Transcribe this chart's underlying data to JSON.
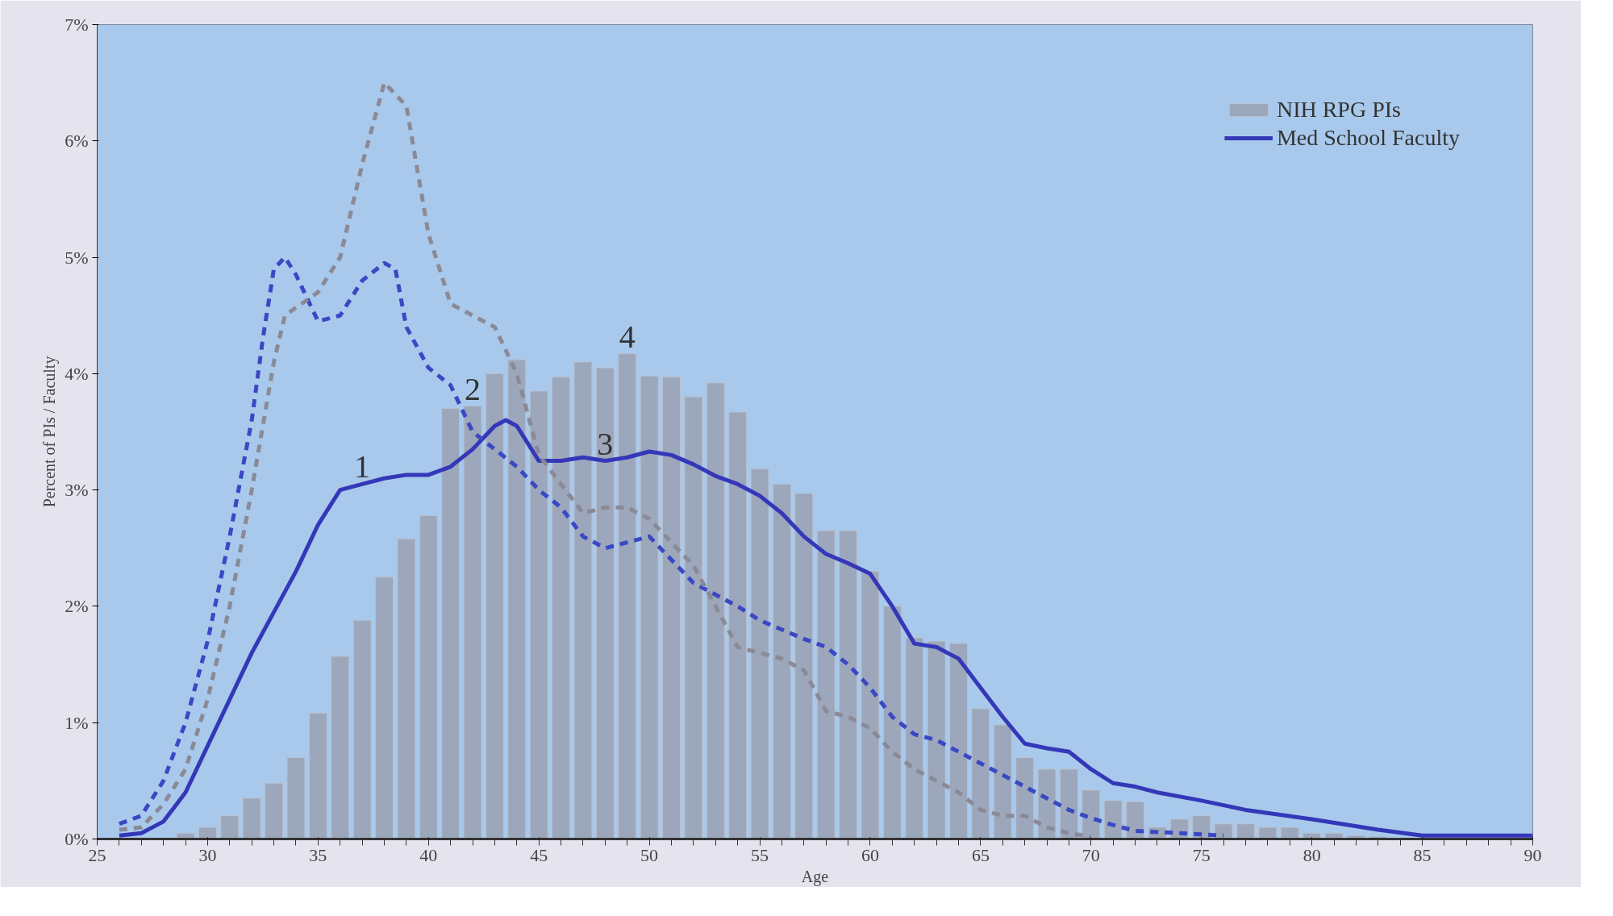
{
  "chart_data": {
    "type": "bar",
    "xlabel": "Age",
    "ylabel": "Percent of PIs / Faculty",
    "xlim": [
      25,
      90
    ],
    "ylim": [
      0,
      7
    ],
    "xticks": [
      25,
      30,
      35,
      40,
      45,
      50,
      55,
      60,
      65,
      70,
      75,
      80,
      85,
      90
    ],
    "yticks": [
      {
        "value": 0,
        "label": "0%"
      },
      {
        "value": 1,
        "label": "1%"
      },
      {
        "value": 2,
        "label": "2%"
      },
      {
        "value": 3,
        "label": "3%"
      },
      {
        "value": 4,
        "label": "4%"
      },
      {
        "value": 5,
        "label": "5%"
      },
      {
        "value": 6,
        "label": "6%"
      },
      {
        "value": 7,
        "label": "7%"
      }
    ],
    "grid": false,
    "legend": "top right",
    "series": [
      {
        "name": "NIH RPG PIs",
        "color": "#9ba3b6",
        "x": [
          29,
          30,
          31,
          32,
          33,
          34,
          35,
          36,
          37,
          38,
          39,
          40,
          41,
          42,
          43,
          44,
          45,
          46,
          47,
          48,
          49,
          50,
          51,
          52,
          53,
          54,
          55,
          56,
          57,
          58,
          59,
          60,
          61,
          62,
          63,
          64,
          65,
          66,
          67,
          68,
          69,
          70,
          71,
          72,
          73,
          74,
          75,
          76,
          77,
          78,
          79,
          80,
          81,
          82,
          83
        ],
        "values": [
          0.05,
          0.1,
          0.2,
          0.35,
          0.48,
          0.7,
          1.08,
          1.57,
          1.88,
          2.25,
          2.58,
          2.78,
          3.7,
          3.72,
          4.0,
          4.12,
          3.85,
          3.97,
          4.1,
          4.05,
          4.17,
          3.98,
          3.97,
          3.8,
          3.92,
          3.67,
          3.18,
          3.05,
          2.97,
          2.65,
          2.65,
          2.3,
          2.0,
          1.73,
          1.7,
          1.68,
          1.12,
          0.98,
          0.7,
          0.6,
          0.6,
          0.42,
          0.33,
          0.32,
          0.1,
          0.17,
          0.2,
          0.13,
          0.13,
          0.1,
          0.1,
          0.05,
          0.05,
          0.03,
          0.02
        ]
      },
      {
        "name": "Med School Faculty",
        "type": "line",
        "line_style": "solid",
        "color": "#3438b8",
        "x": [
          26,
          27,
          28,
          29,
          30,
          31,
          32,
          33,
          34,
          35,
          36,
          37,
          38,
          39,
          40,
          41,
          42,
          43,
          43.5,
          44,
          45,
          46,
          47,
          48,
          49,
          50,
          51,
          52,
          53,
          54,
          55,
          56,
          57,
          58,
          59,
          60,
          61,
          62,
          63,
          64,
          65,
          66,
          67,
          68,
          69,
          70,
          71,
          72,
          73,
          75,
          77,
          80,
          83,
          85,
          87,
          90
        ],
        "values": [
          0.03,
          0.05,
          0.15,
          0.4,
          0.8,
          1.2,
          1.6,
          1.95,
          2.3,
          2.7,
          3.0,
          3.05,
          3.1,
          3.13,
          3.13,
          3.2,
          3.35,
          3.55,
          3.6,
          3.55,
          3.25,
          3.25,
          3.28,
          3.25,
          3.28,
          3.33,
          3.3,
          3.22,
          3.12,
          3.05,
          2.95,
          2.8,
          2.6,
          2.45,
          2.37,
          2.28,
          2.0,
          1.68,
          1.65,
          1.55,
          1.3,
          1.05,
          0.82,
          0.78,
          0.75,
          0.6,
          0.48,
          0.45,
          0.4,
          0.33,
          0.25,
          0.17,
          0.08,
          0.03,
          0.03,
          0.03
        ]
      },
      {
        "type": "line",
        "line_style": "dashed",
        "color": "#3a48c4",
        "x": [
          26,
          27,
          28,
          29,
          30,
          31,
          32,
          32.5,
          33,
          33.5,
          34,
          35,
          36,
          37,
          38,
          38.5,
          39,
          40,
          41,
          42,
          43,
          44,
          45,
          46,
          47,
          48,
          49,
          50,
          51,
          52,
          53,
          54,
          55,
          56,
          57,
          58,
          59,
          60,
          61,
          62,
          63,
          64,
          65,
          66,
          67,
          68,
          69,
          70,
          71,
          72,
          74,
          76
        ],
        "values": [
          0.13,
          0.2,
          0.5,
          1.0,
          1.7,
          2.6,
          3.6,
          4.3,
          4.9,
          5.0,
          4.85,
          4.45,
          4.5,
          4.8,
          4.95,
          4.9,
          4.4,
          4.05,
          3.9,
          3.5,
          3.35,
          3.2,
          3.0,
          2.85,
          2.6,
          2.5,
          2.55,
          2.6,
          2.4,
          2.2,
          2.1,
          2.0,
          1.88,
          1.8,
          1.72,
          1.65,
          1.5,
          1.3,
          1.05,
          0.9,
          0.85,
          0.75,
          0.65,
          0.55,
          0.45,
          0.35,
          0.25,
          0.18,
          0.12,
          0.07,
          0.05,
          0.03
        ]
      },
      {
        "type": "line",
        "line_style": "dashed",
        "color": "#8a8a96",
        "x": [
          26,
          27,
          28,
          29,
          30,
          31,
          32,
          33,
          33.5,
          35,
          36,
          37,
          38,
          39,
          40,
          41,
          42,
          43,
          44,
          45,
          46,
          47,
          48,
          49,
          50,
          51,
          52,
          53,
          54,
          55,
          56,
          57,
          58,
          59,
          60,
          61,
          62,
          63,
          64,
          65,
          66,
          67,
          68,
          69,
          70
        ],
        "values": [
          0.08,
          0.1,
          0.3,
          0.6,
          1.2,
          2.0,
          3.0,
          4.1,
          4.5,
          4.7,
          5.0,
          5.8,
          6.5,
          6.3,
          5.2,
          4.6,
          4.5,
          4.4,
          4.0,
          3.3,
          3.05,
          2.8,
          2.85,
          2.85,
          2.75,
          2.55,
          2.35,
          2.0,
          1.65,
          1.6,
          1.55,
          1.45,
          1.1,
          1.05,
          0.95,
          0.75,
          0.6,
          0.5,
          0.4,
          0.25,
          0.2,
          0.2,
          0.1,
          0.05,
          0.02
        ]
      }
    ],
    "annotations": [
      {
        "text": "1",
        "x": 37,
        "y": 3.05
      },
      {
        "text": "2",
        "x": 42,
        "y": 3.72
      },
      {
        "text": "3",
        "x": 48,
        "y": 3.25
      },
      {
        "text": "4",
        "x": 49,
        "y": 4.17
      }
    ]
  }
}
